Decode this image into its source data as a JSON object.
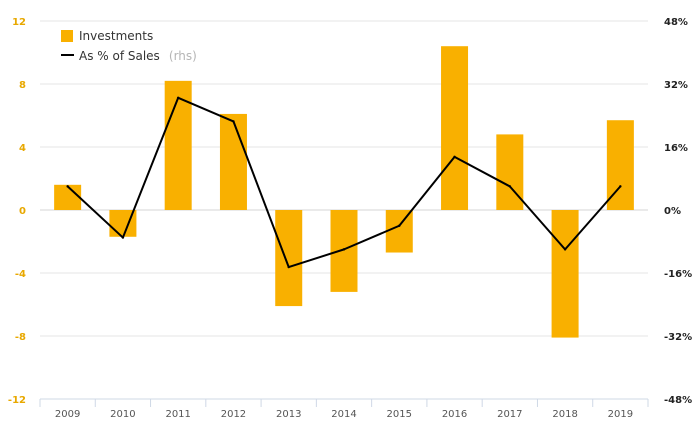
{
  "chart_data": {
    "type": "bar",
    "categories": [
      "2009",
      "2010",
      "2011",
      "2012",
      "2013",
      "2014",
      "2015",
      "2016",
      "2017",
      "2018",
      "2019"
    ],
    "series": [
      {
        "name": "Investments",
        "type": "bar",
        "axis": "left",
        "color": "#f9b000",
        "values": [
          1.6,
          -1.7,
          8.2,
          6.1,
          -6.1,
          -5.2,
          -2.7,
          10.4,
          4.8,
          -8.1,
          5.7
        ]
      },
      {
        "name": "As % of Sales",
        "type": "line",
        "axis": "right",
        "color": "#000000",
        "values": [
          6,
          -7,
          28.5,
          22.5,
          -14.5,
          -10,
          -4,
          13.5,
          6,
          -10,
          6
        ]
      }
    ],
    "legend": {
      "investments_label": "Investments",
      "sales_label": "As % of Sales",
      "sales_note": "(rhs)",
      "position": "top-left"
    },
    "left_axis": {
      "ticks": [
        "12",
        "8",
        "4",
        "0",
        "-4",
        "-8",
        "-12"
      ],
      "ylim": [
        -12,
        12
      ]
    },
    "right_axis": {
      "ticks": [
        "48%",
        "32%",
        "16%",
        "0%",
        "-16%",
        "-32%",
        "-48%"
      ],
      "ylim": [
        -48,
        48
      ]
    },
    "grid": true,
    "colors": {
      "bar": "#f9b000",
      "line": "#000000",
      "grid": "#e6e6e6",
      "left_tick": "#e8a800"
    }
  }
}
